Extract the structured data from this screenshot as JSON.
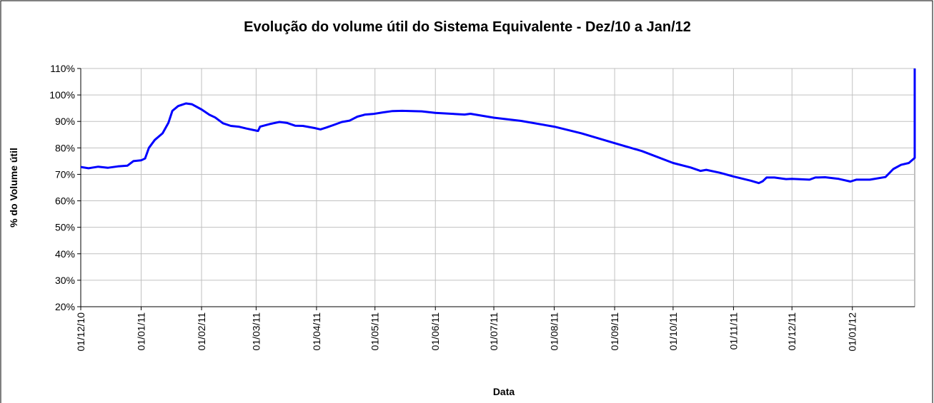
{
  "chart_data": {
    "type": "line",
    "title": "Evolução do volume útil do Sistema Equivalente - Dez/10 a Jan/12",
    "x_label": "Data",
    "y_label": "% do Volume útil",
    "color": "#0000ff",
    "grid": true,
    "x": [
      "01/12/10",
      "05/12/10",
      "10/12/10",
      "15/12/10",
      "20/12/10",
      "25/12/10",
      "28/12/10",
      "01/01/11",
      "03/01/11",
      "05/01/11",
      "08/01/11",
      "12/01/11",
      "15/01/11",
      "17/01/11",
      "20/01/11",
      "24/01/11",
      "27/01/11",
      "01/02/11",
      "05/02/11",
      "08/02/11",
      "12/02/11",
      "16/02/11",
      "20/02/11",
      "24/02/11",
      "28/02/11",
      "02/03/11",
      "03/03/11",
      "08/03/11",
      "13/03/11",
      "17/03/11",
      "21/03/11",
      "25/03/11",
      "31/03/11",
      "03/04/11",
      "06/04/11",
      "10/04/11",
      "14/04/11",
      "18/04/11",
      "22/04/11",
      "26/04/11",
      "30/04/11",
      "05/05/11",
      "10/05/11",
      "15/05/11",
      "25/05/11",
      "01/06/11",
      "16/06/11",
      "19/06/11",
      "01/07/11",
      "15/07/11",
      "01/08/11",
      "15/08/11",
      "01/09/11",
      "15/09/11",
      "01/10/11",
      "10/10/11",
      "15/10/11",
      "18/10/11",
      "25/10/11",
      "01/11/11",
      "10/11/11",
      "14/11/11",
      "16/11/11",
      "18/11/11",
      "22/11/11",
      "28/11/11",
      "01/12/11",
      "10/12/11",
      "13/12/11",
      "18/12/11",
      "25/12/11",
      "31/12/11",
      "03/01/12",
      "10/01/12",
      "18/01/12",
      "22/01/12",
      "26/01/12",
      "30/01/12",
      "02/02/12",
      "02/02/12"
    ],
    "values": [
      72.8,
      72.3,
      72.9,
      72.5,
      73.0,
      73.3,
      75.0,
      75.3,
      76,
      80,
      83,
      85.5,
      89.5,
      94,
      95.8,
      96.8,
      96.5,
      94.5,
      92.5,
      91.5,
      89.3,
      88.3,
      88.0,
      87.3,
      86.7,
      86.4,
      88.0,
      89.0,
      89.8,
      89.4,
      88.4,
      88.3,
      87.5,
      87.0,
      87.7,
      88.7,
      89.8,
      90.3,
      91.8,
      92.6,
      92.8,
      93.4,
      93.9,
      94.0,
      93.8,
      93.2,
      92.6,
      92.9,
      91.4,
      90.2,
      88.0,
      85.5,
      81.8,
      78.8,
      74.3,
      72.6,
      71.3,
      71.7,
      70.6,
      69.2,
      67.6,
      66.7,
      67.4,
      68.8,
      68.8,
      68.2,
      68.3,
      68.0,
      68.8,
      68.9,
      68.3,
      67.3,
      68.0,
      68.0,
      69.0,
      72.0,
      73.6,
      74.3,
      76.2,
      110
    ],
    "xlim": [
      "01/12/10",
      "02/02/12"
    ],
    "xticks": [
      "01/12/10",
      "01/01/11",
      "01/02/11",
      "01/03/11",
      "01/04/11",
      "01/05/11",
      "01/06/11",
      "01/07/11",
      "01/08/11",
      "01/09/11",
      "01/10/11",
      "01/11/11",
      "01/12/11",
      "01/01/12"
    ],
    "ylim": [
      20,
      110
    ],
    "yticks": [
      {
        "value": 20,
        "label": "20%"
      },
      {
        "value": 30,
        "label": "30%"
      },
      {
        "value": 40,
        "label": "40%"
      },
      {
        "value": 50,
        "label": "50%"
      },
      {
        "value": 60,
        "label": "60%"
      },
      {
        "value": 70,
        "label": "70%"
      },
      {
        "value": 80,
        "label": "80%"
      },
      {
        "value": 90,
        "label": "90%"
      },
      {
        "value": 100,
        "label": "100%"
      },
      {
        "value": 110,
        "label": "110%"
      }
    ]
  }
}
